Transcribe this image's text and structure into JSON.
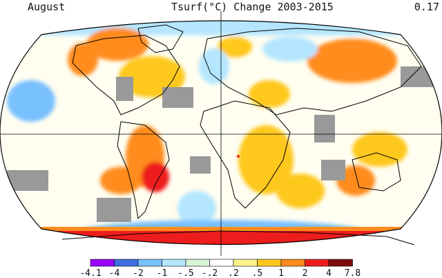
{
  "header": {
    "month": "August",
    "title": "Tsurf(°C) Change 2003-2015",
    "global_mean": "0.17"
  },
  "legend": {
    "labels": [
      "-4.1",
      "-4",
      "-2",
      "-1",
      "-.5",
      "-.2",
      ".2",
      ".5",
      "1",
      "2",
      "4",
      "7.8"
    ],
    "colors": [
      "#9b00ff",
      "#3d6fe0",
      "#79c0ff",
      "#b4e6ff",
      "#d7f4d7",
      "#ffffff",
      "#fff28c",
      "#ffc81e",
      "#ff8c1e",
      "#ee1d1d",
      "#7e0b0b"
    ]
  },
  "map": {
    "projection": "Robinson",
    "missing_data_color": "#999999"
  }
}
